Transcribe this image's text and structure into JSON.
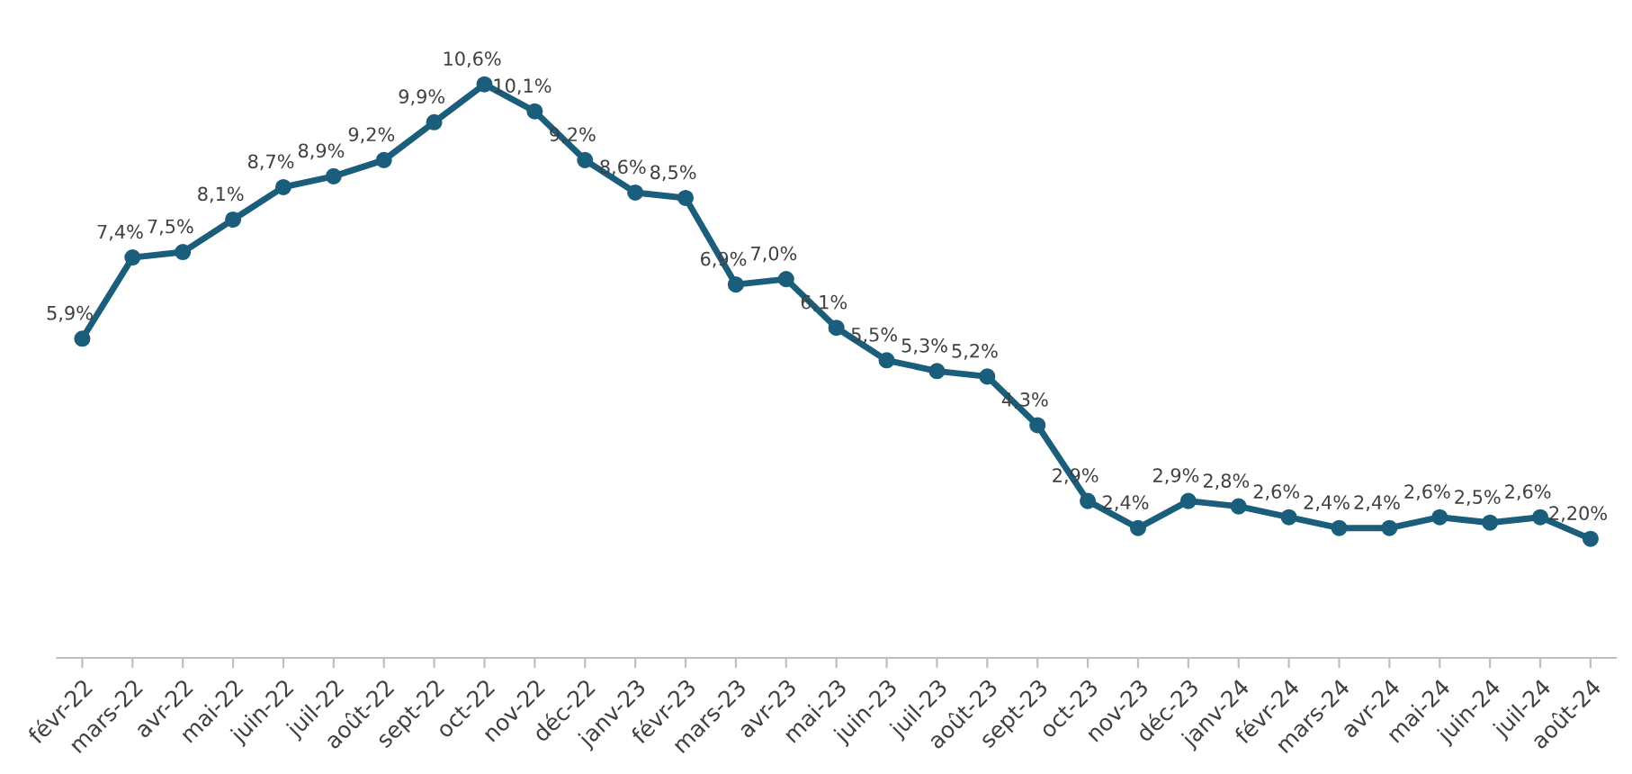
{
  "chart_data": {
    "type": "line",
    "categories": [
      "févr-22",
      "mars-22",
      "avr-22",
      "mai-22",
      "juin-22",
      "juil-22",
      "août-22",
      "sept-22",
      "oct-22",
      "nov-22",
      "déc-22",
      "janv-23",
      "févr-23",
      "mars-23",
      "avr-23",
      "mai-23",
      "juin-23",
      "juil-23",
      "août-23",
      "sept-23",
      "oct-23",
      "nov-23",
      "déc-23",
      "janv-24",
      "févr-24",
      "mars-24",
      "avr-24",
      "mai-24",
      "juin-24",
      "juil-24",
      "août-24"
    ],
    "series": [
      {
        "color": "#1b5e7b",
        "values": [
          5.9,
          7.4,
          7.5,
          8.1,
          8.7,
          8.9,
          9.2,
          9.9,
          10.6,
          10.1,
          9.2,
          8.6,
          8.5,
          6.9,
          7.0,
          6.1,
          5.5,
          5.3,
          5.2,
          4.3,
          2.9,
          2.4,
          2.9,
          2.8,
          2.6,
          2.4,
          2.4,
          2.6,
          2.5,
          2.6,
          2.2
        ],
        "value_labels": [
          "5,9%",
          "7,4%",
          "7,5%",
          "8,1%",
          "8,7%",
          "8,9%",
          "9,2%",
          "9,9%",
          "10,6%",
          "10,1%",
          "9,2%",
          "8,6%",
          "8,5%",
          "6,9%",
          "7,0%",
          "6,1%",
          "5,5%",
          "5,3%",
          "5,2%",
          "4,3%",
          "2,9%",
          "2,4%",
          "2,9%",
          "2,8%",
          "2,6%",
          "2,4%",
          "2,4%",
          "2,6%",
          "2,5%",
          "2,6%",
          "2,20%"
        ]
      }
    ],
    "tick_labels": "x",
    "grid": false,
    "marker": "circle",
    "line_style": "solid"
  }
}
